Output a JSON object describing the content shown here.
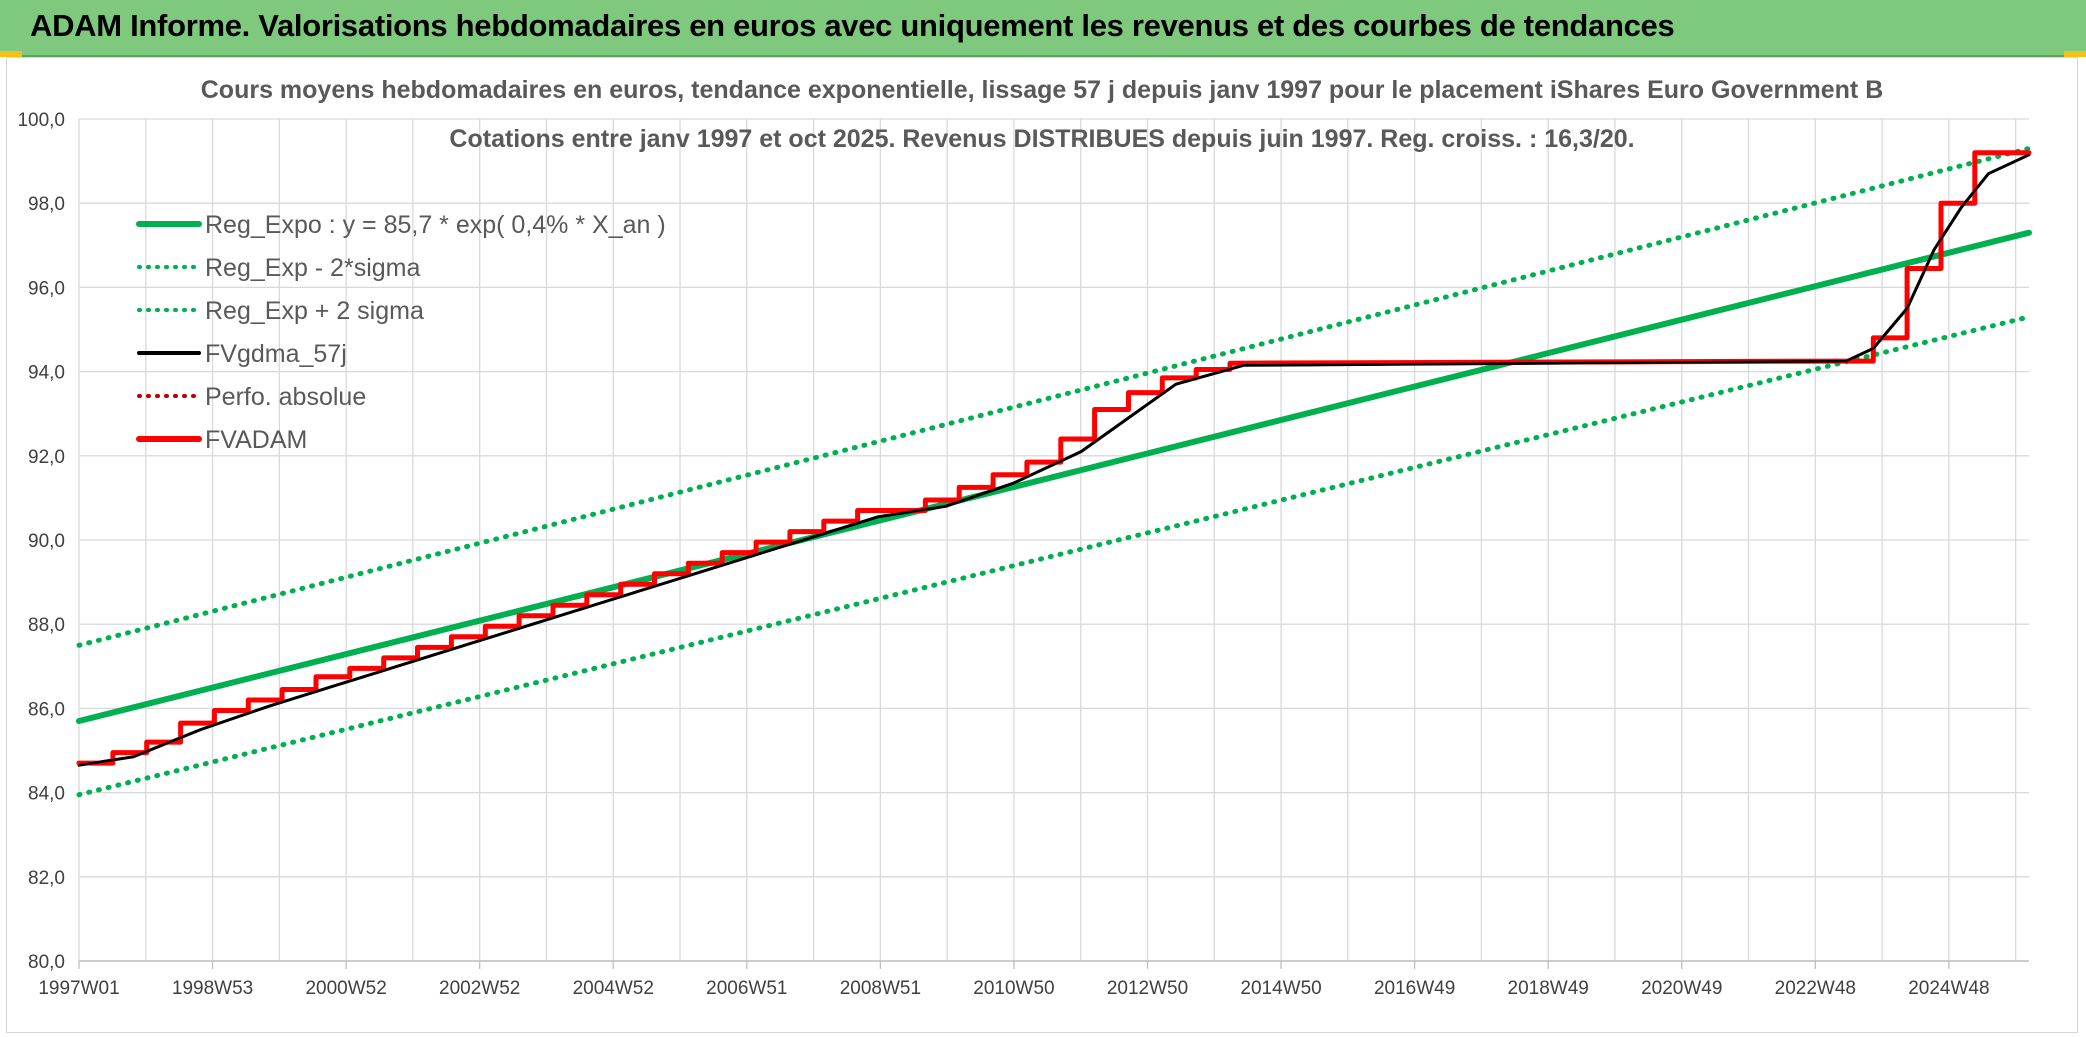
{
  "header": {
    "title": "ADAM Informe. Valorisations hebdomadaires en euros avec uniquement les revenus et des courbes de tendances"
  },
  "colors": {
    "header_bg": "#7fc97f",
    "trend": "#00b050",
    "smooth": "#000000",
    "adam": "#ff0000",
    "perf": "#c00000",
    "grid": "#d9d9d9"
  },
  "chart_data": {
    "type": "line",
    "title": "Cours moyens hebdomadaires en euros, tendance exponentielle, lissage 57 j depuis janv 1997 pour le placement iShares Euro Government B",
    "subtitle": "Cotations entre janv 1997 et oct 2025. Revenus DISTRIBUES depuis juin 1997. Reg. croiss. : 16,3/20.",
    "xlabel": "",
    "ylabel": "",
    "x_ticks": [
      "1997W01",
      "1998W53",
      "2000W52",
      "2002W52",
      "2004W52",
      "2006W51",
      "2008W51",
      "2010W50",
      "2012W50",
      "2014W50",
      "2016W49",
      "2018W49",
      "2020W49",
      "2022W48",
      "2024W48"
    ],
    "y_ticks": [
      "80,0",
      "82,0",
      "84,0",
      "86,0",
      "88,0",
      "90,0",
      "92,0",
      "94,0",
      "96,0",
      "98,0",
      "100,0"
    ],
    "xlim": [
      1997.0,
      2025.8
    ],
    "ylim": [
      80,
      100
    ],
    "grid": true,
    "legend_position": "top-left",
    "legend": [
      {
        "key": "trend",
        "label": "Reg_Expo : y = 85,7 * exp( 0,4% *  X_an )",
        "style": "solid",
        "color": "#00b050"
      },
      {
        "key": "lower",
        "label": "Reg_Exp - 2*sigma",
        "style": "dotted",
        "color": "#00b050"
      },
      {
        "key": "upper",
        "label": "Reg_Exp + 2 sigma",
        "style": "dotted",
        "color": "#00b050"
      },
      {
        "key": "smooth",
        "label": "FVgdma_57j",
        "style": "solid",
        "color": "#000000"
      },
      {
        "key": "perf",
        "label": "Perfo. absolue",
        "style": "dotted",
        "color": "#c00000"
      },
      {
        "key": "adam",
        "label": "FVADAM",
        "style": "solid",
        "color": "#ff0000"
      }
    ],
    "series": [
      {
        "name": "Reg_Expo : y = 85,7 * exp( 0,4% *  X_an )",
        "x": [
          1997.0,
          2025.8
        ],
        "values": [
          85.7,
          97.3
        ]
      },
      {
        "name": "Reg_Exp - 2*sigma",
        "x": [
          1997.0,
          2025.8
        ],
        "values": [
          83.95,
          95.3
        ]
      },
      {
        "name": "Reg_Exp + 2 sigma",
        "x": [
          1997.0,
          2025.8
        ],
        "values": [
          87.5,
          99.3
        ]
      },
      {
        "name": "FVADAM",
        "x": [
          1997.0,
          1997.5,
          1997.5,
          1998.0,
          1998.0,
          1998.5,
          1998.5,
          1999.0,
          1999.0,
          1999.5,
          1999.5,
          2000.0,
          2000.0,
          2000.5,
          2000.5,
          2001.0,
          2001.0,
          2001.5,
          2001.5,
          2002.0,
          2002.0,
          2002.5,
          2002.5,
          2003.0,
          2003.0,
          2003.5,
          2003.5,
          2004.0,
          2004.0,
          2004.5,
          2004.5,
          2005.0,
          2005.0,
          2005.5,
          2005.5,
          2006.0,
          2006.0,
          2006.5,
          2006.5,
          2007.0,
          2007.0,
          2007.5,
          2007.5,
          2008.0,
          2008.0,
          2008.5,
          2008.5,
          2009.0,
          2009.0,
          2009.5,
          2009.5,
          2010.0,
          2010.0,
          2010.5,
          2010.5,
          2011.0,
          2011.0,
          2011.5,
          2011.5,
          2012.0,
          2012.0,
          2012.5,
          2012.5,
          2013.0,
          2013.0,
          2013.5,
          2013.5,
          2014.0,
          2014.0,
          2023.0,
          2023.0,
          2023.5,
          2023.5,
          2024.0,
          2024.0,
          2024.5,
          2024.5,
          2025.0,
          2025.0,
          2025.8
        ],
        "values": [
          84.7,
          84.7,
          84.95,
          84.95,
          85.2,
          85.2,
          85.65,
          85.65,
          85.95,
          85.95,
          86.2,
          86.2,
          86.45,
          86.45,
          86.75,
          86.75,
          86.95,
          86.95,
          87.2,
          87.2,
          87.45,
          87.45,
          87.7,
          87.7,
          87.95,
          87.95,
          88.2,
          88.2,
          88.45,
          88.45,
          88.7,
          88.7,
          88.95,
          88.95,
          89.2,
          89.2,
          89.45,
          89.45,
          89.7,
          89.7,
          89.95,
          89.95,
          90.2,
          90.2,
          90.45,
          90.45,
          90.7,
          90.7,
          90.7,
          90.7,
          90.95,
          90.95,
          91.25,
          91.25,
          91.55,
          91.55,
          91.85,
          91.85,
          92.4,
          92.4,
          93.1,
          93.1,
          93.5,
          93.5,
          93.85,
          93.85,
          94.05,
          94.05,
          94.2,
          94.25,
          94.25,
          94.25,
          94.8,
          94.8,
          96.45,
          96.45,
          98.0,
          98.0,
          99.2,
          99.2
        ]
      },
      {
        "name": "FVgdma_57j",
        "x": [
          1997.0,
          1997.8,
          1998.8,
          1999.8,
          2000.8,
          2001.8,
          2002.8,
          2003.8,
          2004.8,
          2005.8,
          2006.8,
          2007.8,
          2008.8,
          2009.8,
          2010.8,
          2011.8,
          2012.5,
          2013.2,
          2014.2,
          2023.1,
          2023.5,
          2024.0,
          2024.4,
          2024.8,
          2025.2,
          2025.8
        ],
        "values": [
          84.65,
          84.85,
          85.5,
          86.05,
          86.55,
          87.05,
          87.55,
          88.05,
          88.55,
          89.05,
          89.55,
          90.05,
          90.55,
          90.8,
          91.35,
          92.1,
          92.9,
          93.7,
          94.15,
          94.25,
          94.55,
          95.5,
          96.9,
          97.9,
          98.7,
          99.15
        ]
      }
    ]
  }
}
